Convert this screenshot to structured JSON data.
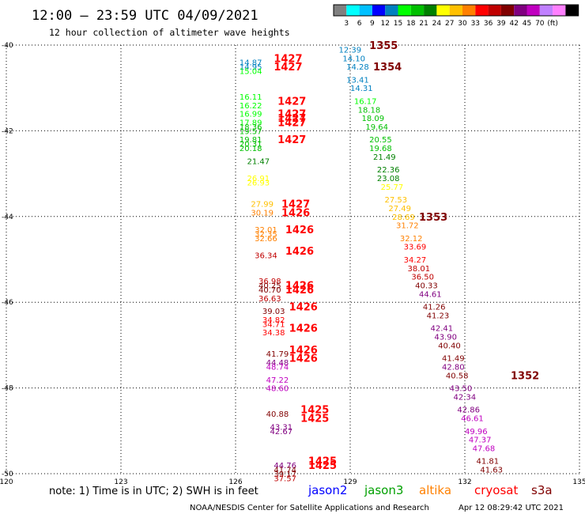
{
  "title": "12:00 – 23:59 UTC 04/09/2021",
  "subtitle": "12 hour collection of altimeter wave heights",
  "colorbar": {
    "colors": [
      "#808080",
      "#00ffff",
      "#00c0ff",
      "#0000ff",
      "#0080c0",
      "#00ff00",
      "#00c000",
      "#008000",
      "#ffff00",
      "#ffc000",
      "#ff8000",
      "#ff0000",
      "#c00000",
      "#800000",
      "#800080",
      "#c000c0",
      "#c080ff",
      "#ff80ff",
      "#000000"
    ],
    "labels": [
      "3",
      "6",
      "9",
      "12",
      "15",
      "18",
      "21",
      "24",
      "27",
      "30",
      "33",
      "36",
      "39",
      "42",
      "45",
      "70",
      "(ft)"
    ]
  },
  "note": "note: 1) Time is in UTC; 2) SWH is in feet",
  "satellites": [
    {
      "name": "jason2",
      "color": "#0000ff"
    },
    {
      "name": "jason3",
      "color": "#00a000"
    },
    {
      "name": "altika",
      "color": "#ff8000"
    },
    {
      "name": "cryosat",
      "color": "#ff0000"
    },
    {
      "name": "s3a",
      "color": "#800000"
    }
  ],
  "footer": {
    "credit": "NOAA/NESDIS Center for Satellite Applications and Research",
    "timestamp": "Apr 12 08:29:42 UTC 2021"
  },
  "chart_data": {
    "type": "scatter",
    "title": "12:00 – 23:59 UTC 04/09/2021",
    "xlabel": "",
    "ylabel": "",
    "xlim": [
      120,
      135
    ],
    "ylim": [
      -50,
      -40
    ],
    "x_ticks": [
      120,
      123,
      126,
      129,
      132,
      135
    ],
    "y_ticks": [
      -40,
      -42,
      -44,
      -46,
      -48,
      -50
    ],
    "grid": true,
    "color_scale_ft": [
      3,
      6,
      9,
      12,
      15,
      18,
      21,
      24,
      27,
      30,
      33,
      36,
      39,
      42,
      45,
      70
    ],
    "wave_heights": [
      {
        "lon": 128.7,
        "lat": -40.1,
        "swh": "12.39"
      },
      {
        "lon": 128.8,
        "lat": -40.3,
        "swh": "14.10"
      },
      {
        "lon": 128.9,
        "lat": -40.5,
        "swh": "14.28"
      },
      {
        "lon": 128.9,
        "lat": -40.8,
        "swh": "13.41"
      },
      {
        "lon": 129.0,
        "lat": -41.0,
        "swh": "14.31"
      },
      {
        "lon": 129.1,
        "lat": -41.3,
        "swh": "16.17"
      },
      {
        "lon": 129.2,
        "lat": -41.5,
        "swh": "18.18"
      },
      {
        "lon": 129.3,
        "lat": -41.7,
        "swh": "18.09"
      },
      {
        "lon": 129.4,
        "lat": -41.9,
        "swh": "19.64"
      },
      {
        "lon": 129.5,
        "lat": -42.2,
        "swh": "20.55"
      },
      {
        "lon": 129.5,
        "lat": -42.4,
        "swh": "19.68"
      },
      {
        "lon": 129.6,
        "lat": -42.6,
        "swh": "21.49"
      },
      {
        "lon": 129.7,
        "lat": -42.9,
        "swh": "22.36"
      },
      {
        "lon": 129.7,
        "lat": -43.1,
        "swh": "23.08"
      },
      {
        "lon": 129.8,
        "lat": -43.3,
        "swh": "25.77"
      },
      {
        "lon": 129.9,
        "lat": -43.6,
        "swh": "27.53"
      },
      {
        "lon": 130.0,
        "lat": -43.8,
        "swh": "27.49"
      },
      {
        "lon": 130.1,
        "lat": -44.0,
        "swh": "28.69"
      },
      {
        "lon": 130.2,
        "lat": -44.2,
        "swh": "31.72"
      },
      {
        "lon": 130.3,
        "lat": -44.5,
        "swh": "32.12"
      },
      {
        "lon": 130.4,
        "lat": -44.7,
        "swh": "33.69"
      },
      {
        "lon": 130.4,
        "lat": -45.0,
        "swh": "34.27"
      },
      {
        "lon": 130.5,
        "lat": -45.2,
        "swh": "38.01"
      },
      {
        "lon": 130.6,
        "lat": -45.4,
        "swh": "36.50"
      },
      {
        "lon": 130.7,
        "lat": -45.6,
        "swh": "40.33"
      },
      {
        "lon": 130.8,
        "lat": -45.8,
        "swh": "44.61"
      },
      {
        "lon": 130.9,
        "lat": -46.1,
        "swh": "41.26"
      },
      {
        "lon": 131.0,
        "lat": -46.3,
        "swh": "41.23"
      },
      {
        "lon": 131.1,
        "lat": -46.6,
        "swh": "42.41"
      },
      {
        "lon": 131.2,
        "lat": -46.8,
        "swh": "43.90"
      },
      {
        "lon": 131.3,
        "lat": -47.0,
        "swh": "40.40"
      },
      {
        "lon": 131.4,
        "lat": -47.3,
        "swh": "41.49"
      },
      {
        "lon": 131.4,
        "lat": -47.5,
        "swh": "42.80"
      },
      {
        "lon": 131.5,
        "lat": -47.7,
        "swh": "40.58"
      },
      {
        "lon": 131.6,
        "lat": -48.0,
        "swh": "43.50"
      },
      {
        "lon": 131.7,
        "lat": -48.2,
        "swh": "42.34"
      },
      {
        "lon": 131.8,
        "lat": -48.5,
        "swh": "42.86"
      },
      {
        "lon": 131.9,
        "lat": -48.7,
        "swh": "46.61"
      },
      {
        "lon": 132.0,
        "lat": -49.0,
        "swh": "49.96"
      },
      {
        "lon": 132.1,
        "lat": -49.2,
        "swh": "47.37"
      },
      {
        "lon": 132.2,
        "lat": -49.4,
        "swh": "47.68"
      },
      {
        "lon": 132.3,
        "lat": -49.7,
        "swh": "41.81"
      },
      {
        "lon": 132.4,
        "lat": -49.9,
        "swh": "41.63"
      },
      {
        "lon": 126.1,
        "lat": -40.4,
        "swh": "14.87"
      },
      {
        "lon": 126.1,
        "lat": -40.5,
        "swh": "14.95"
      },
      {
        "lon": 126.1,
        "lat": -40.6,
        "swh": "15.04"
      },
      {
        "lon": 126.1,
        "lat": -41.2,
        "swh": "16.11"
      },
      {
        "lon": 126.1,
        "lat": -41.4,
        "swh": "16.22"
      },
      {
        "lon": 126.1,
        "lat": -41.6,
        "swh": "16.99"
      },
      {
        "lon": 126.1,
        "lat": -41.8,
        "swh": "17.89"
      },
      {
        "lon": 126.1,
        "lat": -41.9,
        "swh": "18.36"
      },
      {
        "lon": 126.1,
        "lat": -42.0,
        "swh": "19.57"
      },
      {
        "lon": 126.1,
        "lat": -42.2,
        "swh": "19.81"
      },
      {
        "lon": 126.1,
        "lat": -42.3,
        "swh": "20.31"
      },
      {
        "lon": 126.1,
        "lat": -42.4,
        "swh": "20.18"
      },
      {
        "lon": 126.3,
        "lat": -42.7,
        "swh": "21.47"
      },
      {
        "lon": 126.3,
        "lat": -43.1,
        "swh": "26.91"
      },
      {
        "lon": 126.3,
        "lat": -43.2,
        "swh": "26.93"
      },
      {
        "lon": 126.4,
        "lat": -43.7,
        "swh": "27.99"
      },
      {
        "lon": 126.4,
        "lat": -43.9,
        "swh": "30.19"
      },
      {
        "lon": 126.5,
        "lat": -44.3,
        "swh": "32.01"
      },
      {
        "lon": 126.5,
        "lat": -44.4,
        "swh": "32.35"
      },
      {
        "lon": 126.5,
        "lat": -44.5,
        "swh": "32.66"
      },
      {
        "lon": 126.5,
        "lat": -44.9,
        "swh": "36.34"
      },
      {
        "lon": 126.6,
        "lat": -45.5,
        "swh": "36.98"
      },
      {
        "lon": 126.6,
        "lat": -45.6,
        "swh": "40.25"
      },
      {
        "lon": 126.6,
        "lat": -45.7,
        "swh": "40.70"
      },
      {
        "lon": 126.6,
        "lat": -45.9,
        "swh": "36.63"
      },
      {
        "lon": 126.7,
        "lat": -46.2,
        "swh": "39.03"
      },
      {
        "lon": 126.7,
        "lat": -46.4,
        "swh": "34.82"
      },
      {
        "lon": 126.7,
        "lat": -46.5,
        "swh": "34.71"
      },
      {
        "lon": 126.7,
        "lat": -46.7,
        "swh": "34.38"
      },
      {
        "lon": 126.8,
        "lat": -47.2,
        "swh": "41.79"
      },
      {
        "lon": 126.8,
        "lat": -47.4,
        "swh": "44.48"
      },
      {
        "lon": 126.8,
        "lat": -47.5,
        "swh": "48.74"
      },
      {
        "lon": 126.8,
        "lat": -47.8,
        "swh": "47.22"
      },
      {
        "lon": 126.8,
        "lat": -48.0,
        "swh": "48.60"
      },
      {
        "lon": 126.8,
        "lat": -48.6,
        "swh": "40.88"
      },
      {
        "lon": 126.9,
        "lat": -48.9,
        "swh": "43.31"
      },
      {
        "lon": 126.9,
        "lat": -49.0,
        "swh": "42.67"
      },
      {
        "lon": 127.0,
        "lat": -49.8,
        "swh": "44.76"
      },
      {
        "lon": 127.0,
        "lat": -49.9,
        "swh": "41.74"
      },
      {
        "lon": 127.0,
        "lat": -50.0,
        "swh": "39.17"
      },
      {
        "lon": 127.0,
        "lat": -50.1,
        "swh": "37.57"
      }
    ],
    "pass_times": [
      {
        "lon": 129.5,
        "lat": -40.0,
        "time": "1355",
        "color": "#800000"
      },
      {
        "lon": 129.6,
        "lat": -40.5,
        "time": "1354",
        "color": "#800000"
      },
      {
        "lon": 130.8,
        "lat": -44.0,
        "time": "1353",
        "color": "#800000"
      },
      {
        "lon": 133.2,
        "lat": -47.7,
        "time": "1352",
        "color": "#800000"
      },
      {
        "lon": 127.0,
        "lat": -40.3,
        "time": "1427",
        "color": "#ff0000"
      },
      {
        "lon": 127.0,
        "lat": -40.5,
        "time": "1427",
        "color": "#ff0000"
      },
      {
        "lon": 127.1,
        "lat": -41.3,
        "time": "1427",
        "color": "#ff0000"
      },
      {
        "lon": 127.1,
        "lat": -41.6,
        "time": "1427",
        "color": "#ff0000"
      },
      {
        "lon": 127.1,
        "lat": -41.7,
        "time": "1427",
        "color": "#ff0000"
      },
      {
        "lon": 127.1,
        "lat": -41.8,
        "time": "1427",
        "color": "#ff0000"
      },
      {
        "lon": 127.1,
        "lat": -42.2,
        "time": "1427",
        "color": "#ff0000"
      },
      {
        "lon": 127.2,
        "lat": -43.7,
        "time": "1427",
        "color": "#ff0000"
      },
      {
        "lon": 127.2,
        "lat": -43.9,
        "time": "1426",
        "color": "#ff0000"
      },
      {
        "lon": 127.3,
        "lat": -44.3,
        "time": "1426",
        "color": "#ff0000"
      },
      {
        "lon": 127.3,
        "lat": -44.8,
        "time": "1426",
        "color": "#ff0000"
      },
      {
        "lon": 127.3,
        "lat": -45.6,
        "time": "1426",
        "color": "#ff0000"
      },
      {
        "lon": 127.3,
        "lat": -45.7,
        "time": "1426",
        "color": "#ff0000"
      },
      {
        "lon": 127.4,
        "lat": -46.1,
        "time": "1426",
        "color": "#ff0000"
      },
      {
        "lon": 127.4,
        "lat": -46.6,
        "time": "1426",
        "color": "#ff0000"
      },
      {
        "lon": 127.4,
        "lat": -47.1,
        "time": "1426",
        "color": "#ff0000"
      },
      {
        "lon": 127.4,
        "lat": -47.3,
        "time": "1426",
        "color": "#ff0000"
      },
      {
        "lon": 127.7,
        "lat": -48.5,
        "time": "1425",
        "color": "#ff0000"
      },
      {
        "lon": 127.7,
        "lat": -48.7,
        "time": "1425",
        "color": "#ff0000"
      },
      {
        "lon": 127.9,
        "lat": -49.7,
        "time": "1425",
        "color": "#ff0000"
      },
      {
        "lon": 127.9,
        "lat": -49.8,
        "time": "1425",
        "color": "#ff0000"
      }
    ]
  }
}
